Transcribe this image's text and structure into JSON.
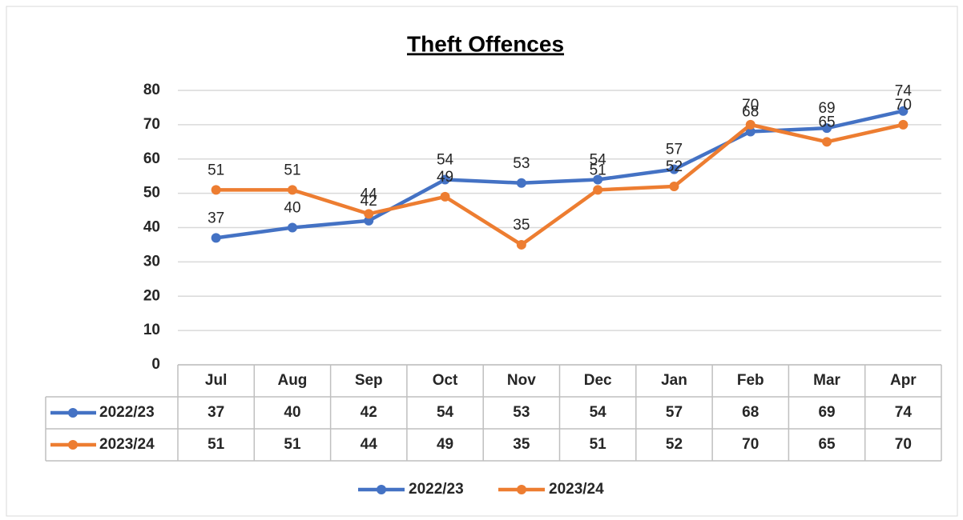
{
  "chart_data": {
    "type": "line",
    "title": "Theft Offences",
    "categories": [
      "Jul",
      "Aug",
      "Sep",
      "Oct",
      "Nov",
      "Dec",
      "Jan",
      "Feb",
      "Mar",
      "Apr"
    ],
    "series": [
      {
        "name": "2022/23",
        "color": "#4472c4",
        "values": [
          37,
          40,
          42,
          54,
          53,
          54,
          57,
          68,
          69,
          74
        ]
      },
      {
        "name": "2023/24",
        "color": "#ed7d31",
        "values": [
          51,
          51,
          44,
          49,
          35,
          51,
          52,
          70,
          65,
          70
        ]
      }
    ],
    "ylim": [
      0,
      80
    ],
    "yticks": [
      0,
      10,
      20,
      30,
      40,
      50,
      60,
      70,
      80
    ],
    "grid": true,
    "data_table": true,
    "legend": "bottom"
  }
}
